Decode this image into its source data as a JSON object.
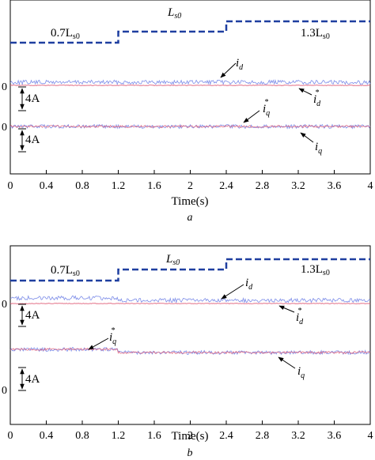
{
  "chart_data": [
    {
      "type": "line",
      "caption": "a",
      "xlabel": "Time(s)",
      "xlim": [
        0,
        4
      ],
      "x_ticks": [
        "0",
        "0.4",
        "0.8",
        "1.2",
        "1.6",
        "2",
        "2.4",
        "2.8",
        "3.2",
        "3.6",
        "4"
      ],
      "y_tick_labels": [
        "0",
        "0"
      ],
      "scale_bars": [
        "4A",
        "4A"
      ],
      "inductance_segments": [
        {
          "t_start": 0,
          "t_end": 1.2,
          "label_main": "0.7L",
          "label_sub": "s0"
        },
        {
          "t_start": 1.2,
          "t_end": 2.4,
          "label_main": "L",
          "label_sub": "s0"
        },
        {
          "t_start": 2.4,
          "t_end": 4,
          "label_main": "1.3L",
          "label_sub": "s0"
        }
      ],
      "series": [
        {
          "name": "i_d",
          "label_main": "i",
          "label_sub": "d",
          "color": "#6e7fe6"
        },
        {
          "name": "i_d*",
          "label_main": "i",
          "label_sub": "d",
          "label_sup": "*",
          "color": "#e0607a"
        },
        {
          "name": "i_q*",
          "label_main": "i",
          "label_sub": "q",
          "label_sup": "*",
          "color": "#e0607a"
        },
        {
          "name": "i_q",
          "label_main": "i",
          "label_sub": "q",
          "color": "#6e7fe6"
        }
      ]
    },
    {
      "type": "line",
      "caption": "b",
      "xlabel": "Time(s)",
      "xlim": [
        0,
        4
      ],
      "x_ticks": [
        "0",
        "0.4",
        "0.8",
        "1.2",
        "1.6",
        "2",
        "2.4",
        "2.8",
        "3.2",
        "3.6",
        "4"
      ],
      "y_tick_labels": [
        "0",
        "0"
      ],
      "scale_bars": [
        "4A",
        "4A"
      ],
      "inductance_segments": [
        {
          "t_start": 0,
          "t_end": 1.2,
          "label_main": "0.7L",
          "label_sub": "s0"
        },
        {
          "t_start": 1.2,
          "t_end": 2.4,
          "label_main": "L",
          "label_sub": "s0"
        },
        {
          "t_start": 2.4,
          "t_end": 4,
          "label_main": "1.3L",
          "label_sub": "s0"
        }
      ],
      "series": [
        {
          "name": "i_d",
          "label_main": "i",
          "label_sub": "d",
          "color": "#6e7fe6"
        },
        {
          "name": "i_d*",
          "label_main": "i",
          "label_sub": "d",
          "label_sup": "*",
          "color": "#e0607a"
        },
        {
          "name": "i_q*",
          "label_main": "i",
          "label_sub": "q",
          "label_sup": "*",
          "color": "#e0607a"
        },
        {
          "name": "i_q",
          "label_main": "i",
          "label_sub": "q",
          "color": "#6e7fe6"
        }
      ]
    }
  ],
  "colors": {
    "dashed_step": "#1f3fa0",
    "measured": "#6e7fe6",
    "reference": "#e0607a"
  }
}
